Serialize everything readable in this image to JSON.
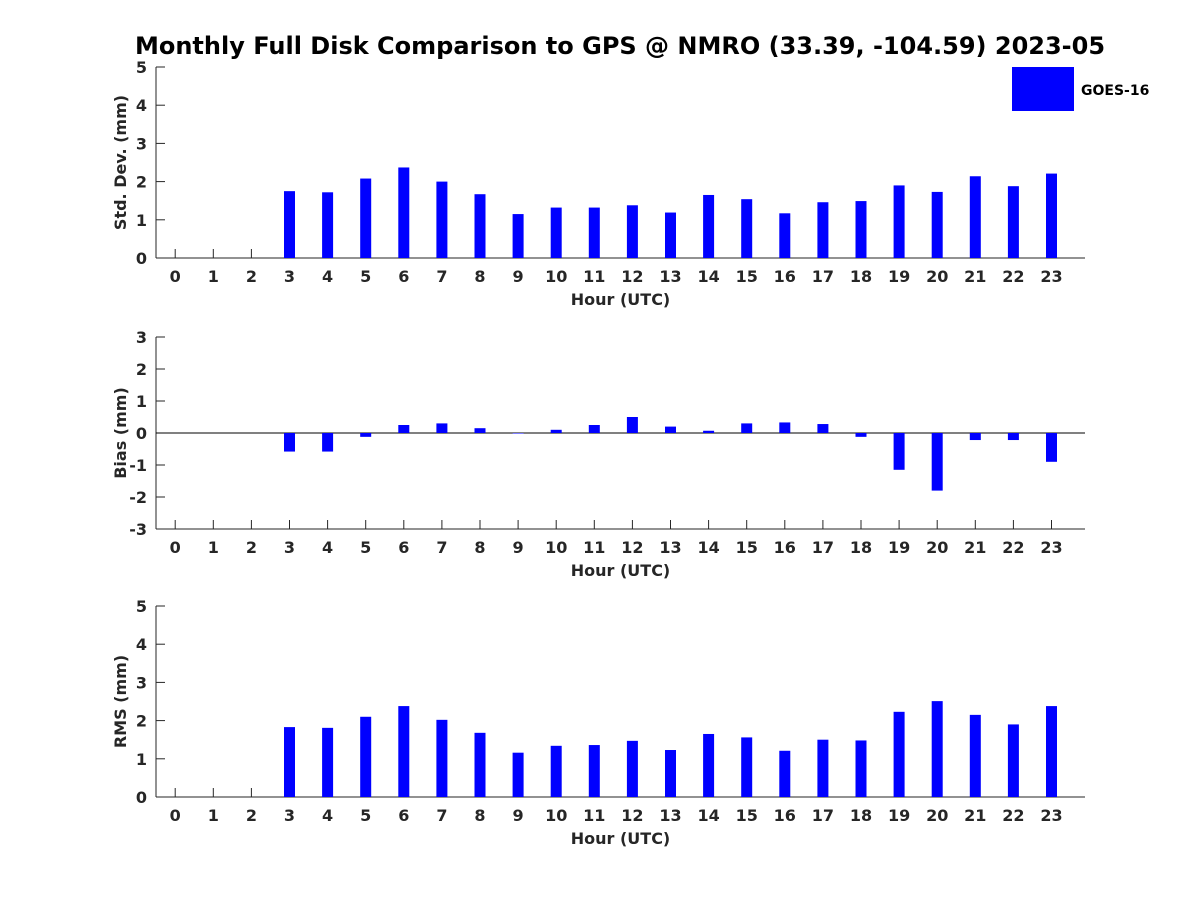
{
  "figure_title": "Monthly Full Disk Comparison to GPS @ NMRO (33.39, -104.59) 2023-05",
  "legend": {
    "label": "GOES-16",
    "color": "#0000ff",
    "placement": "top-right"
  },
  "chart_data": [
    {
      "type": "bar",
      "name": "std-dev",
      "xlabel": "Hour (UTC)",
      "ylabel": "Std. Dev. (mm)",
      "ylim": [
        0,
        5
      ],
      "yticks": [
        0,
        1,
        2,
        3,
        4,
        5
      ],
      "categories": [
        "0",
        "1",
        "2",
        "3",
        "4",
        "5",
        "6",
        "7",
        "8",
        "9",
        "10",
        "11",
        "12",
        "13",
        "14",
        "15",
        "16",
        "17",
        "18",
        "19",
        "20",
        "21",
        "22",
        "23"
      ],
      "values": [
        null,
        null,
        null,
        1.75,
        1.72,
        2.08,
        2.37,
        2.0,
        1.67,
        1.15,
        1.32,
        1.32,
        1.38,
        1.19,
        1.65,
        1.54,
        1.17,
        1.46,
        1.49,
        1.9,
        1.73,
        2.14,
        1.88,
        2.21
      ],
      "series_name": "GOES-16",
      "color": "#0000ff"
    },
    {
      "type": "bar",
      "name": "bias",
      "xlabel": "Hour (UTC)",
      "ylabel": "Bias (mm)",
      "ylim": [
        -3,
        3
      ],
      "yticks": [
        -3,
        -2,
        -1,
        0,
        1,
        2,
        3
      ],
      "categories": [
        "0",
        "1",
        "2",
        "3",
        "4",
        "5",
        "6",
        "7",
        "8",
        "9",
        "10",
        "11",
        "12",
        "13",
        "14",
        "15",
        "16",
        "17",
        "18",
        "19",
        "20",
        "21",
        "22",
        "23"
      ],
      "values": [
        null,
        null,
        null,
        -0.58,
        -0.58,
        -0.12,
        0.25,
        0.3,
        0.15,
        0.0,
        0.1,
        0.25,
        0.5,
        0.2,
        0.07,
        0.3,
        0.33,
        0.28,
        -0.12,
        -1.15,
        -1.8,
        -0.22,
        -0.22,
        -0.9
      ],
      "series_name": "GOES-16",
      "color": "#0000ff"
    },
    {
      "type": "bar",
      "name": "rms",
      "xlabel": "Hour (UTC)",
      "ylabel": "RMS (mm)",
      "ylim": [
        0,
        5
      ],
      "yticks": [
        0,
        1,
        2,
        3,
        4,
        5
      ],
      "categories": [
        "0",
        "1",
        "2",
        "3",
        "4",
        "5",
        "6",
        "7",
        "8",
        "9",
        "10",
        "11",
        "12",
        "13",
        "14",
        "15",
        "16",
        "17",
        "18",
        "19",
        "20",
        "21",
        "22",
        "23"
      ],
      "values": [
        null,
        null,
        null,
        1.83,
        1.81,
        2.1,
        2.38,
        2.02,
        1.68,
        1.16,
        1.34,
        1.36,
        1.47,
        1.23,
        1.65,
        1.56,
        1.21,
        1.5,
        1.48,
        2.23,
        2.51,
        2.15,
        1.9,
        2.38
      ],
      "series_name": "GOES-16",
      "color": "#0000ff"
    }
  ]
}
